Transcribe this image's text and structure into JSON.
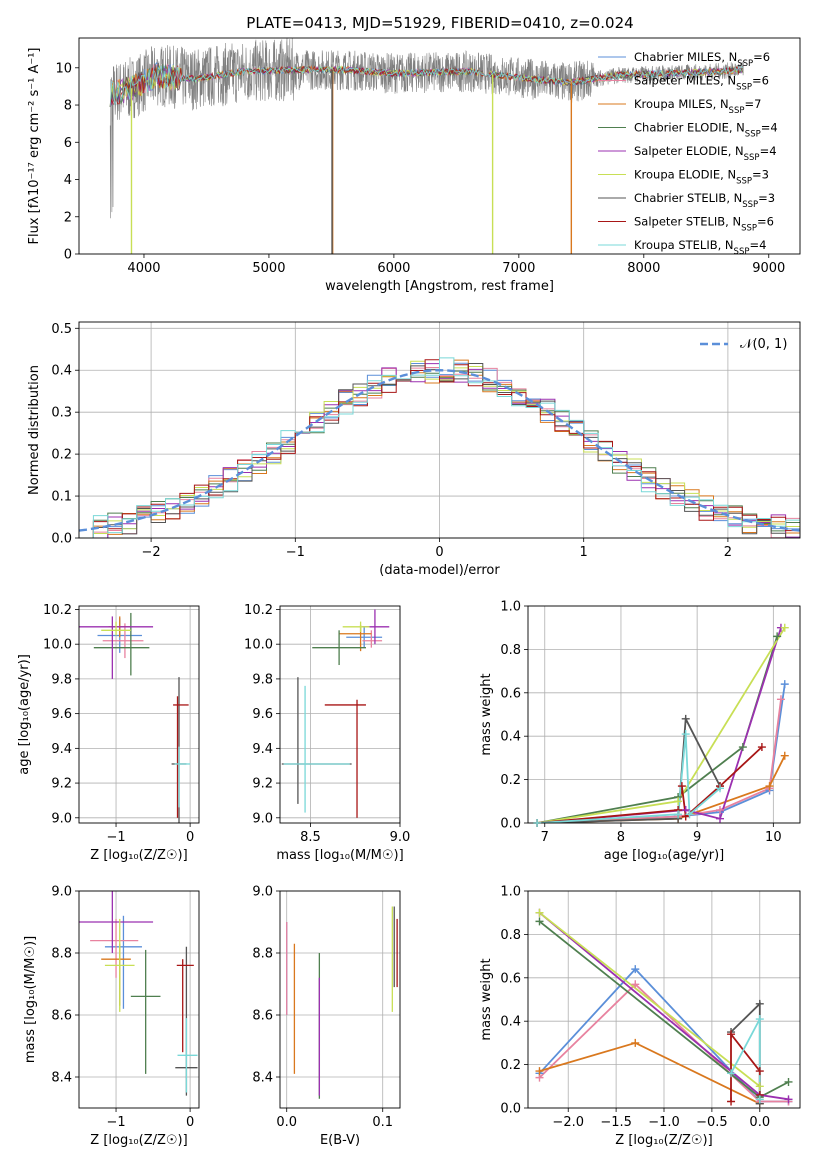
{
  "figure_title": "PLATE=0413, MJD=51929, FIBERID=0410, z=0.024",
  "colors": {
    "Chabrier MILES": "#5b8fd9",
    "Salpeter MILES": "#e8829f",
    "Kroupa MILES": "#d9781e",
    "Chabrier ELODIE": "#4f7f4f",
    "Salpeter ELODIE": "#9b30b0",
    "Kroupa ELODIE": "#c8df55",
    "Chabrier STELIB": "#555555",
    "Salpeter STELIB": "#a81616",
    "Kroupa STELIB": "#79d8d8",
    "data_spectrum": "#808080",
    "gauss": "#5b8fd9"
  },
  "chart_data": [
    {
      "id": "spectrum",
      "type": "line",
      "title": "PLATE=0413, MJD=51929, FIBERID=0410, z=0.024",
      "xlabel": "wavelength [Angstrom, rest frame]",
      "ylabel": "Flux [fλ10⁻¹⁷ erg cm⁻² s⁻¹ A⁻¹]",
      "xlim": [
        3480,
        9250
      ],
      "ylim": [
        0,
        11.6
      ],
      "xticks": [
        "4000",
        "5000",
        "6000",
        "7000",
        "8000",
        "9000"
      ],
      "yticks": [
        "0",
        "2",
        "4",
        "6",
        "8",
        "10"
      ],
      "legend": "upper right",
      "series": [
        {
          "name": "Chabrier MILES, N_SSP=6",
          "label": "Chabrier MILES, N",
          "sub": "SSP",
          "eq": "=6"
        },
        {
          "name": "Salpeter MILES, N_SSP=6",
          "label": "Salpeter MILES, N",
          "sub": "SSP",
          "eq": "=6"
        },
        {
          "name": "Kroupa MILES, N_SSP=7",
          "label": "Kroupa MILES, N",
          "sub": "SSP",
          "eq": "=7"
        },
        {
          "name": "Chabrier ELODIE, N_SSP=4",
          "label": "Chabrier ELODIE, N",
          "sub": "SSP",
          "eq": "=4"
        },
        {
          "name": "Salpeter ELODIE, N_SSP=4",
          "label": "Salpeter ELODIE, N",
          "sub": "SSP",
          "eq": "=4"
        },
        {
          "name": "Kroupa ELODIE, N_SSP=3",
          "label": "Kroupa ELODIE, N",
          "sub": "SSP",
          "eq": "=3"
        },
        {
          "name": "Chabrier STELIB, N_SSP=3",
          "label": "Chabrier STELIB, N",
          "sub": "SSP",
          "eq": "=3"
        },
        {
          "name": "Salpeter STELIB, N_SSP=6",
          "label": "Salpeter STELIB, N",
          "sub": "SSP",
          "eq": "=6"
        },
        {
          "name": "Kroupa STELIB, N_SSP=4",
          "label": "Kroupa STELIB, N",
          "sub": "SSP",
          "eq": "=4"
        }
      ],
      "continuum_points": [
        [
          3730,
          8.6
        ],
        [
          3900,
          8.9
        ],
        [
          4100,
          9.6
        ],
        [
          4400,
          9.4
        ],
        [
          4800,
          9.8
        ],
        [
          5200,
          9.9
        ],
        [
          5600,
          9.9
        ],
        [
          6000,
          9.7
        ],
        [
          6600,
          9.8
        ],
        [
          7100,
          9.4
        ],
        [
          7400,
          9.2
        ],
        [
          7800,
          9.6
        ],
        [
          8200,
          9.7
        ],
        [
          8600,
          9.8
        ],
        [
          8800,
          9.9
        ]
      ]
    },
    {
      "id": "residuals",
      "type": "bar",
      "xlabel": "(data-model)/error",
      "ylabel": "Normed distribution",
      "xlim": [
        -2.5,
        2.5
      ],
      "ylim": [
        0,
        0.515
      ],
      "xticks": [
        "−2",
        "−1",
        "0",
        "1",
        "2"
      ],
      "yticks": [
        "0.0",
        "0.1",
        "0.2",
        "0.3",
        "0.4",
        "0.5"
      ],
      "legend_label": "𝒩(0, 1)",
      "bin_width": 0.1,
      "peak": 0.4
    },
    {
      "id": "age_vs_Z",
      "type": "scatter",
      "xlabel": "Z [log₁₀(Z/Z☉)]",
      "ylabel": "age  [log₁₀(age/yr)]",
      "xlim": [
        -1.5,
        0.12
      ],
      "ylim": [
        8.97,
        10.22
      ],
      "xticks": [
        "−1",
        "0"
      ],
      "yticks": [
        "9.0",
        "9.2",
        "9.4",
        "9.6",
        "9.8",
        "10.0",
        "10.2"
      ],
      "points": [
        {
          "x": -0.95,
          "y": 10.05,
          "xerr": [
            0.3,
            0.3
          ],
          "yerr": [
            0.1,
            0.1
          ]
        },
        {
          "x": -0.88,
          "y": 10.02,
          "xerr": [
            0.3,
            0.25
          ],
          "yerr": [
            0.1,
            0.1
          ]
        },
        {
          "x": -0.95,
          "y": 10.1,
          "xerr": [
            0.15,
            0.15
          ],
          "yerr": [
            0.06,
            0.06
          ]
        },
        {
          "x": -0.8,
          "y": 9.98,
          "xerr": [
            0.5,
            0.25
          ],
          "yerr": [
            0.16,
            0.2
          ]
        },
        {
          "x": -1.05,
          "y": 10.1,
          "xerr": [
            0.5,
            0.55
          ],
          "yerr": [
            0.3,
            0.06
          ]
        },
        {
          "x": -1.0,
          "y": 10.08,
          "xerr": [
            0.2,
            0.2
          ],
          "yerr": [
            0.03,
            0.05
          ]
        },
        {
          "x": -0.15,
          "y": 9.31,
          "xerr": [
            0.1,
            0.1
          ],
          "yerr": [
            0.5,
            0.5
          ]
        },
        {
          "x": -0.17,
          "y": 9.65,
          "xerr": [
            0.06,
            0.15
          ],
          "yerr": [
            0.65,
            0.05
          ]
        },
        {
          "x": -0.15,
          "y": 9.31,
          "xerr": [
            0.06,
            0.15
          ],
          "yerr": [
            0.25,
            0.1
          ]
        }
      ]
    },
    {
      "id": "age_vs_mass",
      "type": "scatter",
      "xlabel": "mass [log₁₀(M/M☉)]",
      "ylabel": "",
      "xlim": [
        8.33,
        9.0
      ],
      "ylim": [
        8.97,
        10.22
      ],
      "xticks": [
        "8.5",
        "9.0"
      ],
      "yticks": [
        "9.0",
        "9.2",
        "9.4",
        "9.6",
        "9.8",
        "10.0",
        "10.2"
      ],
      "points": [
        {
          "x": 8.8,
          "y": 10.04,
          "xerr": [
            0.1,
            0.1
          ],
          "yerr": [
            0.06,
            0.06
          ]
        },
        {
          "x": 8.84,
          "y": 10.02,
          "xerr": [
            0.05,
            0.06
          ],
          "yerr": [
            0.04,
            0.06
          ]
        },
        {
          "x": 8.78,
          "y": 10.06,
          "xerr": [
            0.12,
            0.06
          ],
          "yerr": [
            0.1,
            0.05
          ]
        },
        {
          "x": 8.66,
          "y": 9.98,
          "xerr": [
            0.15,
            0.15
          ],
          "yerr": [
            0.1,
            0.1
          ]
        },
        {
          "x": 8.86,
          "y": 10.1,
          "xerr": [
            0.07,
            0.08
          ],
          "yerr": [
            0.1,
            0.1
          ]
        },
        {
          "x": 8.78,
          "y": 10.1,
          "xerr": [
            0.1,
            0.05
          ],
          "yerr": [
            0.03,
            0.03
          ]
        },
        {
          "x": 8.43,
          "y": 9.31,
          "xerr": [
            0.09,
            0.3
          ],
          "yerr": [
            0.23,
            0.5
          ]
        },
        {
          "x": 8.76,
          "y": 9.65,
          "xerr": [
            0.18,
            0.05
          ],
          "yerr": [
            0.65,
            0.03
          ]
        },
        {
          "x": 8.47,
          "y": 9.31,
          "xerr": [
            0.12,
            0.25
          ],
          "yerr": [
            0.28,
            0.45
          ]
        }
      ]
    },
    {
      "id": "weight_vs_age",
      "type": "line",
      "xlabel": "age  [log₁₀(age/yr)]",
      "ylabel": "mass weight",
      "xlim": [
        6.78,
        10.35
      ],
      "ylim": [
        0,
        1.0
      ],
      "xticks": [
        "7",
        "8",
        "9",
        "10"
      ],
      "yticks": [
        "0.0",
        "0.2",
        "0.4",
        "0.6",
        "0.8",
        "1.0"
      ],
      "series": [
        {
          "x": [
            6.9,
            8.75,
            9.3,
            9.95,
            10.15
          ],
          "y": [
            0.0,
            0.03,
            0.05,
            0.15,
            0.64
          ]
        },
        {
          "x": [
            6.9,
            8.75,
            9.3,
            9.95,
            10.1
          ],
          "y": [
            0.0,
            0.03,
            0.06,
            0.16,
            0.57
          ]
        },
        {
          "x": [
            6.9,
            8.75,
            9.95,
            10.15
          ],
          "y": [
            0.0,
            0.02,
            0.17,
            0.31
          ]
        },
        {
          "x": [
            6.9,
            8.75,
            9.6,
            10.05
          ],
          "y": [
            0.0,
            0.12,
            0.35,
            0.86
          ]
        },
        {
          "x": [
            6.9,
            8.85,
            9.3,
            10.1
          ],
          "y": [
            0.0,
            0.06,
            0.02,
            0.9
          ]
        },
        {
          "x": [
            6.9,
            8.75,
            10.15
          ],
          "y": [
            0.0,
            0.1,
            0.9
          ]
        },
        {
          "x": [
            6.9,
            8.75,
            8.85,
            9.3
          ],
          "y": [
            0.0,
            0.02,
            0.48,
            0.17
          ]
        },
        {
          "x": [
            6.9,
            8.75,
            8.8,
            8.85,
            9.3,
            9.85
          ],
          "y": [
            0.0,
            0.06,
            0.17,
            0.03,
            0.17,
            0.35
          ]
        },
        {
          "x": [
            6.9,
            8.75,
            8.85,
            8.9,
            9.3
          ],
          "y": [
            0.0,
            0.04,
            0.41,
            0.04,
            0.16
          ]
        }
      ]
    },
    {
      "id": "mass_vs_Z",
      "type": "scatter",
      "xlabel": "Z [log₁₀(Z/Z☉)]",
      "ylabel": "mass [log₁₀(M/M☉)]",
      "xlim": [
        -1.5,
        0.12
      ],
      "ylim": [
        8.3,
        9.0
      ],
      "xticks": [
        "−1",
        "0"
      ],
      "yticks": [
        "8.4",
        "8.6",
        "8.8",
        "9.0"
      ],
      "points": [
        {
          "x": -0.9,
          "y": 8.82,
          "xerr": [
            0.25,
            0.25
          ],
          "yerr": [
            0.2,
            0.1
          ]
        },
        {
          "x": -1.0,
          "y": 8.84,
          "xerr": [
            0.35,
            0.3
          ],
          "yerr": [
            0.12,
            0.07
          ]
        },
        {
          "x": -0.95,
          "y": 8.78,
          "xerr": [
            0.25,
            0.15
          ],
          "yerr": [
            0.15,
            0.05
          ]
        },
        {
          "x": -0.6,
          "y": 8.66,
          "xerr": [
            0.2,
            0.2
          ],
          "yerr": [
            0.25,
            0.15
          ]
        },
        {
          "x": -1.05,
          "y": 8.9,
          "xerr": [
            0.45,
            0.55
          ],
          "yerr": [
            0.1,
            0.1
          ]
        },
        {
          "x": -0.95,
          "y": 8.76,
          "xerr": [
            0.2,
            0.2
          ],
          "yerr": [
            0.15,
            0.15
          ]
        },
        {
          "x": -0.05,
          "y": 8.43,
          "xerr": [
            0.15,
            0.15
          ],
          "yerr": [
            0.09,
            0.39
          ]
        },
        {
          "x": -0.1,
          "y": 8.76,
          "xerr": [
            0.08,
            0.15
          ],
          "yerr": [
            0.28,
            0.02
          ]
        },
        {
          "x": -0.05,
          "y": 8.47,
          "xerr": [
            0.12,
            0.15
          ],
          "yerr": [
            0.12,
            0.12
          ]
        }
      ]
    },
    {
      "id": "mass_vs_ebv",
      "type": "scatter",
      "xlabel": "E(B-V)",
      "ylabel": "",
      "xlim": [
        -0.007,
        0.118
      ],
      "ylim": [
        8.3,
        9.0
      ],
      "xticks": [
        "0.0",
        "0.1"
      ],
      "yticks": [
        "8.4",
        "8.6",
        "8.8",
        "9.0"
      ],
      "points": [
        {
          "x": 0.0,
          "y": 8.74,
          "xerr": [
            0,
            0
          ],
          "yerr": [
            0.14,
            0.16
          ]
        },
        {
          "x": 0.0,
          "y": 8.78,
          "xerr": [
            0,
            0
          ],
          "yerr": [
            0.18,
            0.12
          ]
        },
        {
          "x": 0.008,
          "y": 8.62,
          "xerr": [
            0,
            0
          ],
          "yerr": [
            0.21,
            0.21
          ]
        },
        {
          "x": 0.034,
          "y": 8.6,
          "xerr": [
            0,
            0
          ],
          "yerr": [
            0.27,
            0.2
          ]
        },
        {
          "x": 0.034,
          "y": 8.52,
          "xerr": [
            0,
            0
          ],
          "yerr": [
            0.18,
            0.2
          ]
        },
        {
          "x": 0.11,
          "y": 8.78,
          "xerr": [
            0,
            0
          ],
          "yerr": [
            0.17,
            0.17
          ]
        },
        {
          "x": 0.112,
          "y": 8.82,
          "xerr": [
            0,
            0
          ],
          "yerr": [
            0.13,
            0.13
          ]
        },
        {
          "x": 0.115,
          "y": 8.8,
          "xerr": [
            0,
            0
          ],
          "yerr": [
            0.11,
            0.11
          ]
        }
      ]
    },
    {
      "id": "weight_vs_Z",
      "type": "line",
      "xlabel": "Z [log₁₀(Z/Z☉)]",
      "ylabel": "mass weight",
      "xlim": [
        -2.42,
        0.42
      ],
      "ylim": [
        0,
        1.0
      ],
      "xticks": [
        "−2.0",
        "−1.5",
        "−1.0",
        "−0.5",
        "0.0"
      ],
      "yticks": [
        "0.0",
        "0.2",
        "0.4",
        "0.6",
        "0.8",
        "1.0"
      ],
      "series": [
        {
          "x": [
            -2.3,
            -1.3,
            0.0,
            0.3
          ],
          "y": [
            0.16,
            0.64,
            0.03,
            0.03
          ]
        },
        {
          "x": [
            -2.3,
            -1.3,
            0.0,
            0.3
          ],
          "y": [
            0.14,
            0.57,
            0.03,
            0.03
          ]
        },
        {
          "x": [
            -2.3,
            -1.3,
            0.0
          ],
          "y": [
            0.17,
            0.3,
            0.02
          ]
        },
        {
          "x": [
            -2.3,
            0.0,
            0.3
          ],
          "y": [
            0.86,
            0.05,
            0.12
          ]
        },
        {
          "x": [
            -2.3,
            0.0,
            0.3
          ],
          "y": [
            0.9,
            0.06,
            0.04
          ]
        },
        {
          "x": [
            -2.3,
            0.0
          ],
          "y": [
            0.9,
            0.1
          ]
        },
        {
          "x": [
            -0.3,
            0.0,
            0.0
          ],
          "y": [
            0.35,
            0.48,
            0.02
          ]
        },
        {
          "x": [
            -0.3,
            -0.3,
            0.0,
            0.0
          ],
          "y": [
            0.03,
            0.34,
            0.17,
            0.06
          ]
        },
        {
          "x": [
            -0.3,
            0.0,
            0.0
          ],
          "y": [
            0.16,
            0.41,
            0.04
          ]
        }
      ]
    }
  ]
}
